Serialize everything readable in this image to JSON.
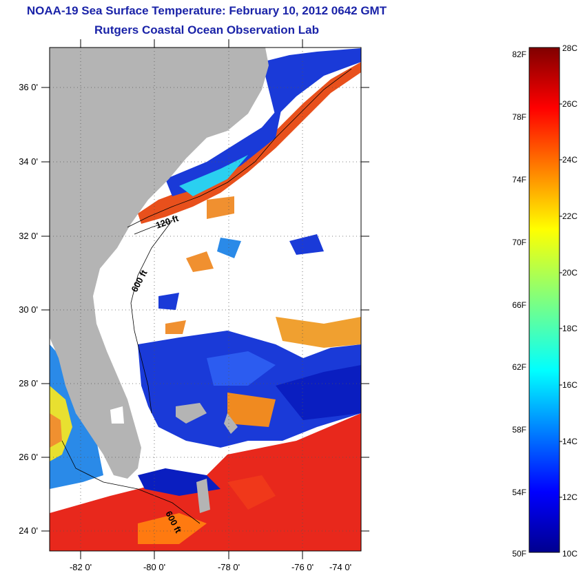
{
  "title": {
    "line1": "NOAA-19 Sea Surface Temperature:  February 10, 2012 0642 GMT",
    "line2": "Rutgers Coastal Ocean Observation Lab"
  },
  "map": {
    "lat_labels": [
      "36 0'",
      "34 0'",
      "32 0'",
      "30 0'",
      "28 0'",
      "26 0'",
      "24 0'"
    ],
    "lon_labels": [
      "-82 0'",
      "-80 0'",
      "-78 0'",
      "-76 0'",
      "-74 0'"
    ],
    "isobaths": [
      {
        "label": "120 ft"
      },
      {
        "label": "600 ft"
      },
      {
        "label": "600 ft"
      }
    ],
    "colors": {
      "land": "#b4b4b4",
      "cloud": "#ffffff",
      "frame": "#000000"
    }
  },
  "colorbar": {
    "fahrenheit": [
      "82F",
      "78F",
      "74F",
      "70F",
      "66F",
      "62F",
      "58F",
      "54F",
      "50F"
    ],
    "celsius": [
      "28C",
      "26C",
      "24C",
      "22C",
      "20C",
      "18C",
      "16C",
      "14C",
      "12C",
      "10C"
    ],
    "range_c": [
      10,
      28
    ]
  }
}
